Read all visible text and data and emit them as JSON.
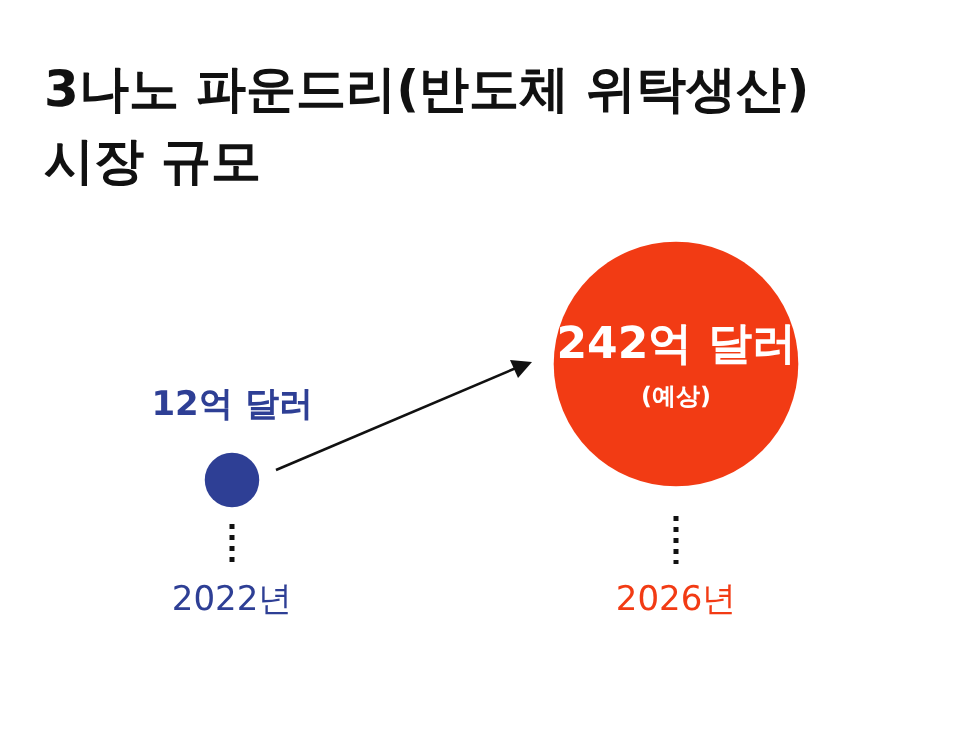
{
  "chart_data": {
    "type": "other",
    "title": "3나노 파운드리(반도체 위탁생산)\n시장 규모",
    "categories": [
      "2022년",
      "2026년"
    ],
    "values": [
      12,
      242
    ],
    "colors": [
      "#2e3f95",
      "#f23b14"
    ],
    "value_labels": [
      "12억 달러",
      "242억 달러"
    ],
    "annotations": [
      {
        "text": "(예상)",
        "x": "2026년"
      }
    ]
  }
}
